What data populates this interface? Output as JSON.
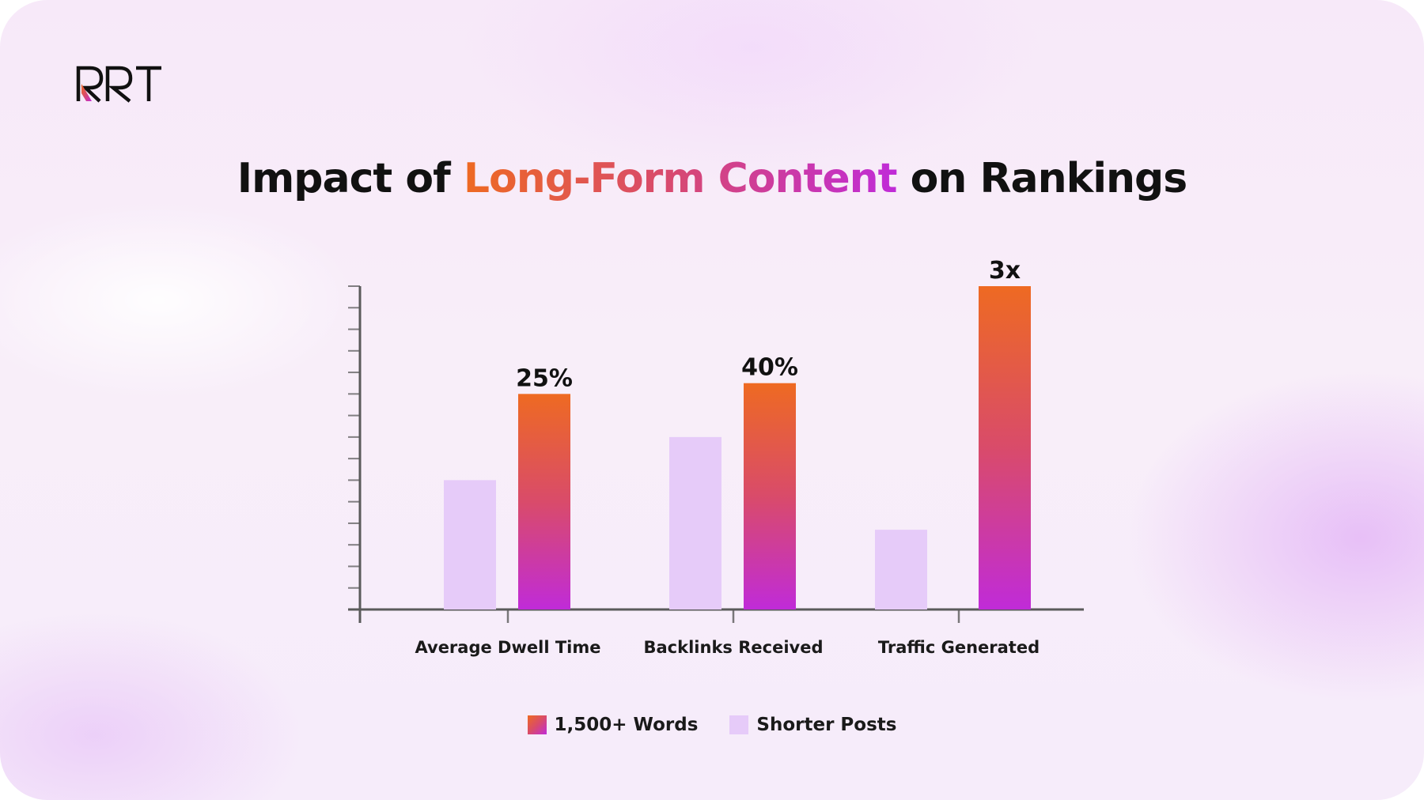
{
  "brand": {
    "logo_text": "RRT"
  },
  "title": {
    "prefix": "Impact of ",
    "highlight": "Long-Form Content",
    "suffix": " on Rankings"
  },
  "colors": {
    "long_form_gradient": [
      "#ee6a22",
      "#d94b6a",
      "#c02bd8"
    ],
    "shorter_posts": "#e6cbf9",
    "axis": "#5a5a5a",
    "text": "#111111"
  },
  "chart_data": {
    "type": "bar",
    "categories": [
      "Average Dwell Time",
      "Backlinks Received",
      "Traffic Generated"
    ],
    "series": [
      {
        "name": "Shorter Posts",
        "values": [
          6,
          8,
          3.7
        ]
      },
      {
        "name": "1,500+ Words",
        "values": [
          10,
          10.5,
          15
        ]
      }
    ],
    "data_labels": [
      "25%",
      "40%",
      "3x"
    ],
    "ylim": [
      0,
      15
    ],
    "y_ticks": 16,
    "y_tick_labels_shown": false,
    "grid": false,
    "legend": {
      "position": "bottom-center",
      "order": [
        "1,500+ Words",
        "Shorter Posts"
      ]
    }
  }
}
